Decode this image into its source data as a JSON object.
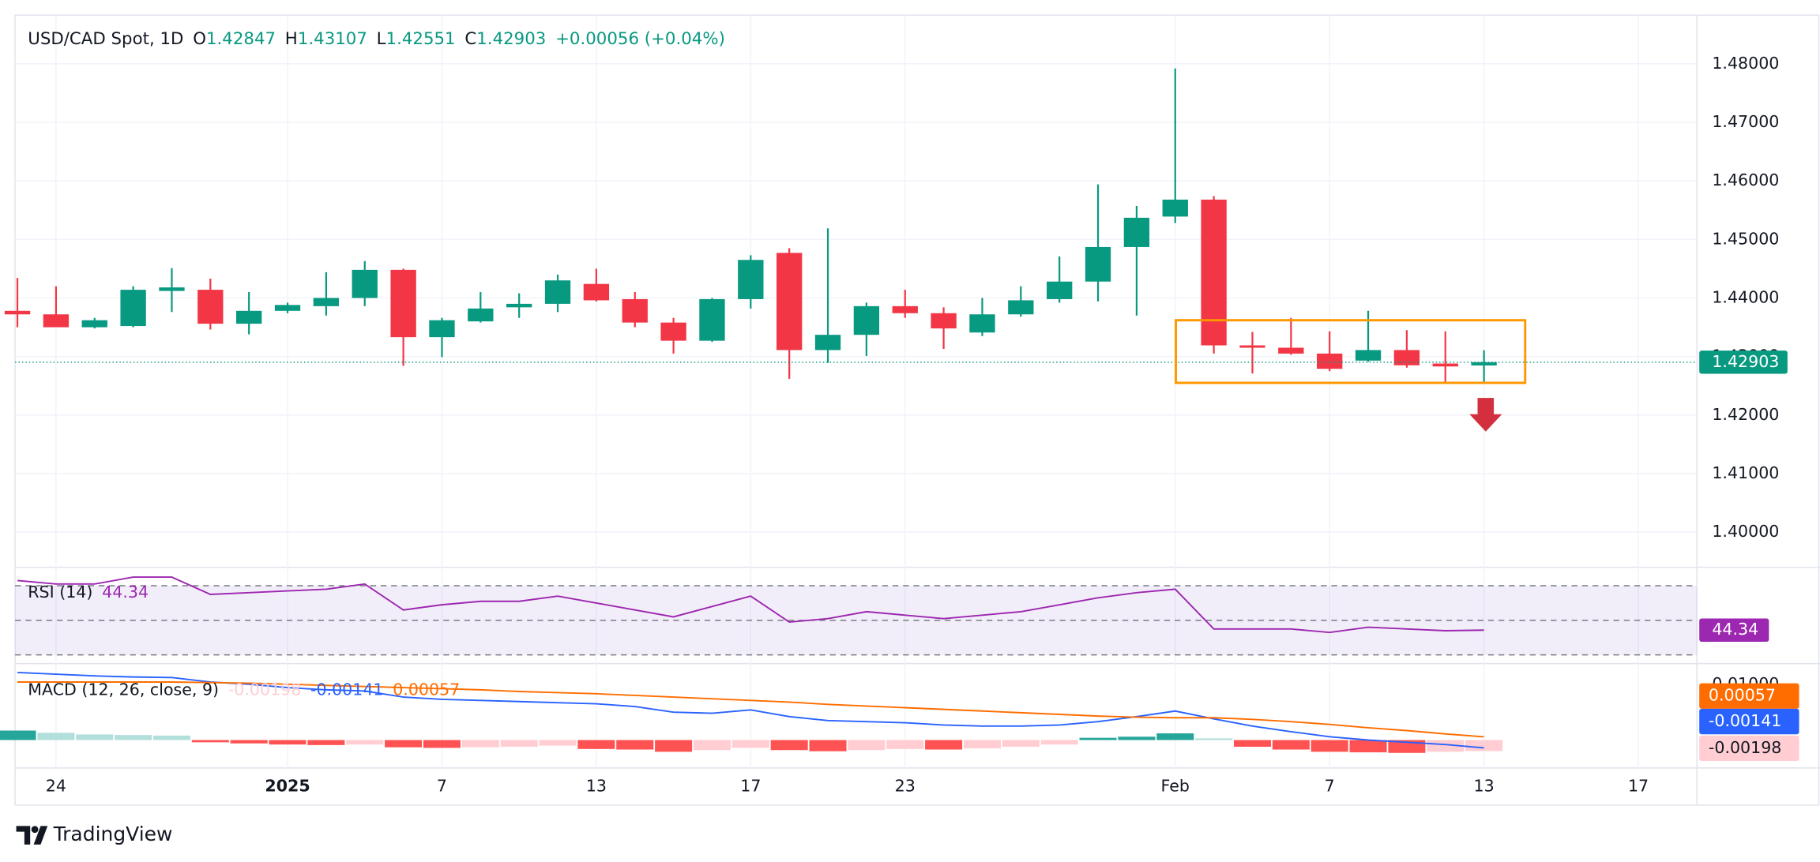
{
  "chart_data": {
    "type": "candlestick",
    "title": "USD/CAD Spot, 1D",
    "legend_letters": [
      "O",
      "H",
      "L",
      "C"
    ],
    "change": "+0.00056 (+0.04%)",
    "up_color": "#089981",
    "down_color": "#f23645",
    "grid": true,
    "categories": [
      null,
      "24",
      null,
      null,
      null,
      null,
      null,
      "2025",
      null,
      null,
      null,
      "7",
      null,
      null,
      null,
      "13",
      null,
      null,
      null,
      "17",
      null,
      null,
      null,
      "23",
      null,
      null,
      null,
      null,
      null,
      null,
      "Feb",
      null,
      null,
      null,
      "7",
      null,
      null,
      null,
      "13",
      null,
      null,
      null,
      "17",
      null
    ],
    "open": [
      1.4378,
      1.4372,
      1.435,
      1.4352,
      1.4412,
      1.4414,
      1.4356,
      1.4378,
      1.4386,
      1.44,
      1.4448,
      1.4333,
      1.436,
      1.4384,
      1.439,
      1.4424,
      1.4398,
      1.4358,
      1.4327,
      1.4398,
      1.4477,
      1.4311,
      1.4337,
      1.4386,
      1.4374,
      1.4341,
      1.4372,
      1.4398,
      1.4428,
      1.4487,
      1.4539,
      1.4568,
      1.4319,
      1.4315,
      1.4305,
      1.4293,
      1.4311,
      1.4288,
      1.42847,
      null,
      null,
      null,
      null,
      null
    ],
    "high": [
      1.4434,
      1.442,
      1.4366,
      1.442,
      1.4451,
      1.4433,
      1.441,
      1.4392,
      1.4444,
      1.4463,
      1.445,
      1.4366,
      1.441,
      1.4408,
      1.444,
      1.445,
      1.441,
      1.4366,
      1.44,
      1.4473,
      1.4485,
      1.4519,
      1.4392,
      1.4414,
      1.4384,
      1.44,
      1.442,
      1.4471,
      1.4594,
      1.4557,
      1.4792,
      1.4574,
      1.4342,
      1.4366,
      1.4343,
      1.4378,
      1.4345,
      1.4343,
      1.43107,
      null,
      null,
      null,
      null,
      null
    ],
    "low": [
      1.435,
      1.435,
      1.4348,
      1.435,
      1.4376,
      1.4346,
      1.4338,
      1.4374,
      1.437,
      1.4386,
      1.4284,
      1.4299,
      1.4358,
      1.4366,
      1.4376,
      1.4394,
      1.435,
      1.4305,
      1.4325,
      1.4382,
      1.4262,
      1.4289,
      1.4301,
      1.4366,
      1.4313,
      1.4335,
      1.4368,
      1.4392,
      1.4394,
      1.437,
      1.4528,
      1.4305,
      1.4271,
      1.4303,
      1.4275,
      1.4291,
      1.4281,
      1.4257,
      1.42551,
      null,
      null,
      null,
      null,
      null
    ],
    "close": [
      1.4372,
      1.435,
      1.4362,
      1.4414,
      1.4418,
      1.4356,
      1.4378,
      1.4388,
      1.44,
      1.4448,
      1.4333,
      1.4362,
      1.4382,
      1.439,
      1.443,
      1.4396,
      1.4358,
      1.4327,
      1.4398,
      1.4465,
      1.4311,
      1.4337,
      1.4386,
      1.4374,
      1.4348,
      1.4372,
      1.4396,
      1.4428,
      1.4487,
      1.4537,
      1.4568,
      1.4319,
      1.4315,
      1.4305,
      1.4279,
      1.4311,
      1.4285,
      1.4283,
      1.42903,
      null,
      null,
      null,
      null,
      null
    ],
    "ylim": [
      1.394,
      1.4883
    ],
    "yticks": [
      {
        "value": 1.48,
        "label": "1.48000"
      },
      {
        "value": 1.47,
        "label": "1.47000"
      },
      {
        "value": 1.46,
        "label": "1.46000"
      },
      {
        "value": 1.45,
        "label": "1.45000"
      },
      {
        "value": 1.44,
        "label": "1.44000"
      },
      {
        "value": 1.43,
        "label": "1.43000"
      },
      {
        "value": 1.42,
        "label": "1.42000"
      },
      {
        "value": 1.41,
        "label": "1.41000"
      },
      {
        "value": 1.4,
        "label": "1.40000"
      }
    ],
    "rsi": {
      "title": "RSI (14)",
      "color": "#9c27b0",
      "ylim": [
        25,
        80
      ],
      "levels": [
        70,
        50,
        30
      ],
      "values": [
        73,
        71,
        71,
        75,
        75,
        65,
        66,
        67,
        68,
        71,
        56,
        59,
        61,
        61,
        64,
        60,
        56,
        52,
        58,
        64,
        49,
        51,
        55,
        53,
        51,
        53,
        55,
        59,
        63,
        66,
        68,
        45,
        45,
        45,
        43,
        46,
        45,
        44,
        44.34,
        null,
        null,
        null,
        null,
        null
      ]
    },
    "macd": {
      "title": "MACD (12, 26, close, 9)",
      "ylim": [
        -0.005,
        0.0135
      ],
      "yticks": [
        {
          "value": 0.01,
          "label": "0.01000"
        }
      ],
      "histogram": [
        0.0017,
        0.0013,
        0.001,
        0.0009,
        0.0008,
        -0.0004,
        -0.0006,
        -0.0008,
        -0.0009,
        -0.0008,
        -0.0013,
        -0.0014,
        -0.0013,
        -0.0012,
        -0.001,
        -0.0016,
        -0.0017,
        -0.0021,
        -0.0018,
        -0.0014,
        -0.0018,
        -0.002,
        -0.0018,
        -0.0016,
        -0.0017,
        -0.0015,
        -0.0012,
        -0.0008,
        0.0004,
        0.0006,
        0.0012,
        0.0003,
        -0.0012,
        -0.0017,
        -0.0021,
        -0.0022,
        -0.0023,
        -0.0021,
        -0.00198,
        null,
        null,
        null,
        null,
        null
      ],
      "macd_line": [
        0.0121,
        0.0118,
        0.0115,
        0.0113,
        0.0112,
        0.0104,
        0.01,
        0.0094,
        0.009,
        0.0088,
        0.0077,
        0.0073,
        0.0071,
        0.0069,
        0.0067,
        0.0065,
        0.006,
        0.005,
        0.0048,
        0.0054,
        0.0042,
        0.0035,
        0.0033,
        0.0031,
        0.0027,
        0.0025,
        0.0025,
        0.0027,
        0.0033,
        0.0042,
        0.0052,
        0.0038,
        0.0025,
        0.0015,
        0.0006,
        0.0,
        -0.0004,
        -0.0008,
        -0.00141,
        null,
        null,
        null,
        null,
        null
      ],
      "signal_line": [
        0.0104,
        0.0104,
        0.0104,
        0.0104,
        0.0104,
        0.0103,
        0.0102,
        0.01,
        0.0098,
        0.0096,
        0.0094,
        0.0092,
        0.009,
        0.0087,
        0.0085,
        0.0083,
        0.008,
        0.0077,
        0.0074,
        0.0071,
        0.0068,
        0.0064,
        0.0061,
        0.0058,
        0.0055,
        0.0052,
        0.0049,
        0.0046,
        0.0043,
        0.0041,
        0.004,
        0.004,
        0.0037,
        0.0033,
        0.0028,
        0.0022,
        0.0017,
        0.0011,
        0.00057,
        null,
        null,
        null,
        null,
        null
      ],
      "macd_color": "#2962ff",
      "signal_color": "#ff6d00",
      "hist_colors": [
        "#26a69a",
        "#b2dfdb",
        "#ff5252",
        "#ffcdd2"
      ]
    }
  },
  "brand": "TradingView"
}
